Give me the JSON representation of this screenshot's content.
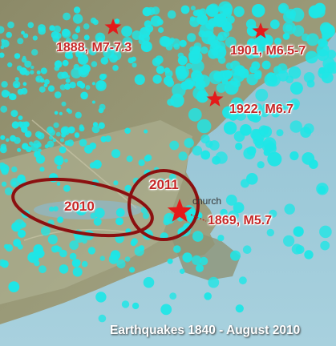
{
  "map": {
    "caption": "Earthquakes 1840 - August 2010",
    "city_label": "cnurch",
    "colors": {
      "quake_dot": "#1ee6e6",
      "star": "#e41a1a",
      "label": "#c62828",
      "ellipse": "#8b1010"
    },
    "historic_quakes": [
      {
        "label": "1888, M7-7.3"
      },
      {
        "label": "1901, M6.5-7"
      },
      {
        "label": "1922, M6.7"
      },
      {
        "label": "1869, M5.7"
      }
    ],
    "zones": [
      {
        "label": "2010"
      },
      {
        "label": "2011"
      }
    ]
  }
}
